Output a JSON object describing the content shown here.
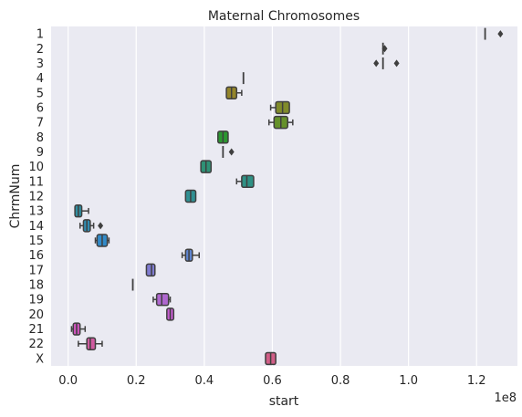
{
  "chart_data": {
    "type": "boxplot",
    "orientation": "horizontal",
    "title": "Maternal Chromosomes",
    "xlabel": "start",
    "ylabel": "ChrmNum",
    "x_offset_text": "1e8",
    "xlim": [
      -0.05,
      1.32
    ],
    "x_ticks": [
      0.0,
      0.2,
      0.4,
      0.6,
      0.8,
      1.0,
      1.2
    ],
    "x_tick_labels": [
      "0.0",
      "0.2",
      "0.4",
      "0.6",
      "0.8",
      "1.0",
      "1.2"
    ],
    "grid": true,
    "background": "#eaeaf2",
    "categories": [
      "1",
      "2",
      "3",
      "4",
      "5",
      "6",
      "7",
      "8",
      "9",
      "10",
      "11",
      "12",
      "13",
      "14",
      "15",
      "16",
      "17",
      "18",
      "19",
      "20",
      "21",
      "22",
      "X"
    ],
    "boxes": [
      {
        "chrom": "1",
        "whislo": 1.225,
        "q1": 1.225,
        "med": 1.225,
        "q3": 1.225,
        "whishi": 1.225,
        "fliers": [
          1.27
        ],
        "color": "#f77189"
      },
      {
        "chrom": "2",
        "whislo": 0.925,
        "q1": 0.925,
        "med": 0.925,
        "q3": 0.925,
        "whishi": 0.925,
        "fliers": [
          0.93
        ],
        "color": "#f7754f"
      },
      {
        "chrom": "3",
        "whislo": 0.925,
        "q1": 0.925,
        "med": 0.925,
        "q3": 0.925,
        "whishi": 0.925,
        "fliers": [
          0.905,
          0.965
        ],
        "color": "#dc8932"
      },
      {
        "chrom": "4",
        "whislo": 0.515,
        "q1": 0.515,
        "med": 0.515,
        "q3": 0.515,
        "whishi": 0.515,
        "fliers": [],
        "color": "#c39532"
      },
      {
        "chrom": "5",
        "whislo": 0.465,
        "q1": 0.465,
        "med": 0.48,
        "q3": 0.495,
        "whishi": 0.51,
        "fliers": [],
        "color": "#ae9d31"
      },
      {
        "chrom": "6",
        "whislo": 0.595,
        "q1": 0.61,
        "med": 0.63,
        "q3": 0.65,
        "whishi": 0.65,
        "fliers": [],
        "color": "#97a431"
      },
      {
        "chrom": "7",
        "whislo": 0.59,
        "q1": 0.605,
        "med": 0.625,
        "q3": 0.645,
        "whishi": 0.66,
        "fliers": [],
        "color": "#77ab31"
      },
      {
        "chrom": "8",
        "whislo": 0.44,
        "q1": 0.44,
        "med": 0.455,
        "q3": 0.47,
        "whishi": 0.47,
        "fliers": [],
        "color": "#33b039"
      },
      {
        "chrom": "9",
        "whislo": 0.455,
        "q1": 0.455,
        "med": 0.455,
        "q3": 0.455,
        "whishi": 0.455,
        "fliers": [
          0.48
        ],
        "color": "#35ad6b"
      },
      {
        "chrom": "10",
        "whislo": 0.39,
        "q1": 0.39,
        "med": 0.405,
        "q3": 0.42,
        "whishi": 0.42,
        "fliers": [],
        "color": "#36ab8b"
      },
      {
        "chrom": "11",
        "whislo": 0.495,
        "q1": 0.51,
        "med": 0.525,
        "q3": 0.545,
        "whishi": 0.545,
        "fliers": [],
        "color": "#37aa9d"
      },
      {
        "chrom": "12",
        "whislo": 0.345,
        "q1": 0.345,
        "med": 0.36,
        "q3": 0.375,
        "whishi": 0.375,
        "fliers": [],
        "color": "#38a9ad"
      },
      {
        "chrom": "13",
        "whislo": 0.02,
        "q1": 0.02,
        "med": 0.03,
        "q3": 0.04,
        "whishi": 0.06,
        "fliers": [],
        "color": "#39a7bd"
      },
      {
        "chrom": "14",
        "whislo": 0.035,
        "q1": 0.045,
        "med": 0.055,
        "q3": 0.065,
        "whishi": 0.075,
        "fliers": [
          0.095
        ],
        "color": "#3aa5d1"
      },
      {
        "chrom": "15",
        "whislo": 0.08,
        "q1": 0.085,
        "med": 0.1,
        "q3": 0.115,
        "whishi": 0.12,
        "fliers": [],
        "color": "#3ba3ec"
      },
      {
        "chrom": "16",
        "whislo": 0.335,
        "q1": 0.345,
        "med": 0.355,
        "q3": 0.365,
        "whishi": 0.385,
        "fliers": [],
        "color": "#6e9bf4"
      },
      {
        "chrom": "17",
        "whislo": 0.23,
        "q1": 0.23,
        "med": 0.245,
        "q3": 0.255,
        "whishi": 0.255,
        "fliers": [],
        "color": "#9591f4"
      },
      {
        "chrom": "18",
        "whislo": 0.19,
        "q1": 0.19,
        "med": 0.19,
        "q3": 0.19,
        "whishi": 0.19,
        "fliers": [],
        "color": "#b586f4"
      },
      {
        "chrom": "19",
        "whislo": 0.25,
        "q1": 0.26,
        "med": 0.275,
        "q3": 0.295,
        "whishi": 0.3,
        "fliers": [],
        "color": "#ce79f4"
      },
      {
        "chrom": "20",
        "whislo": 0.29,
        "q1": 0.29,
        "med": 0.3,
        "q3": 0.31,
        "whishi": 0.31,
        "fliers": [],
        "color": "#e66cf4"
      },
      {
        "chrom": "21",
        "whislo": 0.01,
        "q1": 0.015,
        "med": 0.025,
        "q3": 0.035,
        "whishi": 0.05,
        "fliers": [],
        "color": "#f465df"
      },
      {
        "chrom": "22",
        "whislo": 0.03,
        "q1": 0.055,
        "med": 0.065,
        "q3": 0.08,
        "whishi": 0.1,
        "fliers": [],
        "color": "#f56bbc"
      },
      {
        "chrom": "X",
        "whislo": 0.58,
        "q1": 0.58,
        "med": 0.595,
        "q3": 0.61,
        "whishi": 0.61,
        "fliers": [],
        "color": "#f66e9f"
      }
    ]
  }
}
